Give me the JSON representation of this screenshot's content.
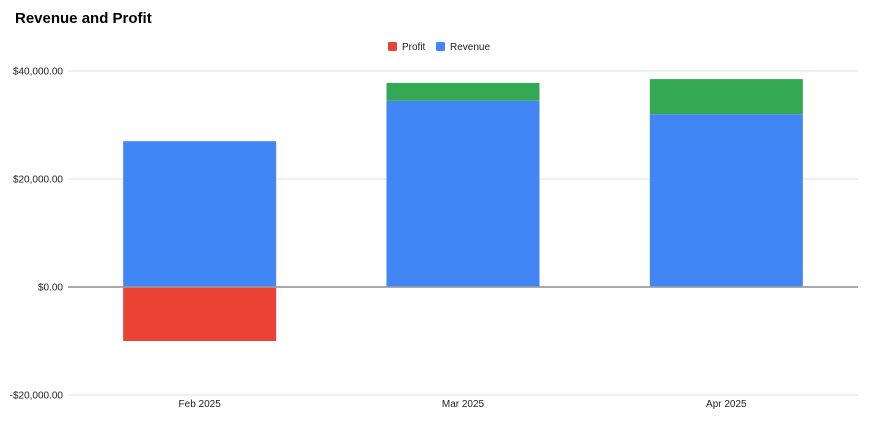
{
  "chart_data": {
    "type": "bar",
    "stacked": true,
    "title": "Revenue and Profit",
    "xlabel": "",
    "ylabel": "",
    "categories": [
      "Feb 2025",
      "Mar 2025",
      "Apr 2025"
    ],
    "series": [
      {
        "name": "Revenue",
        "color": "#4285f4",
        "values": [
          27000,
          34500,
          32000
        ],
        "negative_color": "#4285f4"
      },
      {
        "name": "Profit",
        "color": "#34a853",
        "negative_color": "#ea4335",
        "values": [
          -10000,
          3300,
          6500
        ]
      }
    ],
    "legend": {
      "placement": "top-center",
      "items": [
        {
          "name": "Profit",
          "color": "#ea4335"
        },
        {
          "name": "Revenue",
          "color": "#4285f4"
        }
      ]
    },
    "ylim": [
      -20000,
      40000
    ],
    "yticks": [
      -20000,
      0,
      20000,
      40000
    ],
    "ytick_labels": [
      "-$20,000.00",
      "$0.00",
      "$20,000.00",
      "$40,000.00"
    ],
    "grid": true
  }
}
